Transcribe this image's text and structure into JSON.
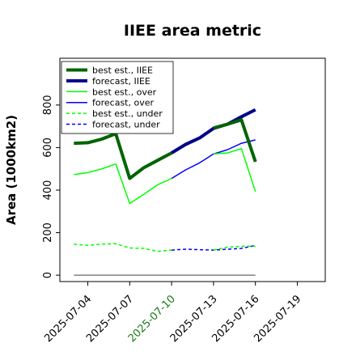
{
  "chart_data": {
    "type": "line",
    "title": "IIEE area metric",
    "ylabel": "Area (1000km2)",
    "xlabel": "",
    "x_range": [
      "2025-07-02",
      "2025-07-21"
    ],
    "ylim": [
      -30,
      1020
    ],
    "yticks": [
      0,
      200,
      400,
      600,
      800
    ],
    "xticks": [
      {
        "date": "2025-07-04",
        "label": "2025-07-04",
        "color": "#000000"
      },
      {
        "date": "2025-07-07",
        "label": "2025-07-07",
        "color": "#000000"
      },
      {
        "date": "2025-07-10",
        "label": "2025-07-10",
        "color": "#1a7a1a"
      },
      {
        "date": "2025-07-13",
        "label": "2025-07-13",
        "color": "#000000"
      },
      {
        "date": "2025-07-16",
        "label": "2025-07-16",
        "color": "#000000"
      },
      {
        "date": "2025-07-19",
        "label": "2025-07-19",
        "color": "#000000"
      }
    ],
    "grid": false,
    "legend_position": "top-left",
    "series": [
      {
        "name": "best est., IIEE",
        "color": "#006400",
        "style": "solid",
        "width": 4,
        "x": [
          "2025-07-03",
          "2025-07-04",
          "2025-07-05",
          "2025-07-06",
          "2025-07-07",
          "2025-07-08",
          "2025-07-09",
          "2025-07-10"
        ],
        "y": [
          620,
          623,
          640,
          665,
          455,
          505,
          540,
          575
        ]
      },
      {
        "name": "forecast, IIEE",
        "color": "#00008b",
        "style": "solid",
        "width": 4,
        "x": [
          "2025-07-10",
          "2025-07-11",
          "2025-07-12",
          "2025-07-13",
          "2025-07-14",
          "2025-07-15",
          "2025-07-16"
        ],
        "y": [
          575,
          615,
          645,
          690,
          710,
          745,
          778
        ]
      },
      {
        "name": "best est., over",
        "color": "#00ff00",
        "style": "solid",
        "width": 1.5,
        "x": [
          "2025-07-03",
          "2025-07-04",
          "2025-07-05",
          "2025-07-06",
          "2025-07-07",
          "2025-07-08",
          "2025-07-09",
          "2025-07-10"
        ],
        "y": [
          473,
          482,
          500,
          523,
          337,
          380,
          425,
          455
        ]
      },
      {
        "name": "forecast, over",
        "color": "#0000ff",
        "style": "solid",
        "width": 1.5,
        "x": [
          "2025-07-10",
          "2025-07-11",
          "2025-07-12",
          "2025-07-13",
          "2025-07-14",
          "2025-07-15",
          "2025-07-16"
        ],
        "y": [
          455,
          495,
          528,
          570,
          590,
          620,
          636
        ]
      },
      {
        "name": "best est., under",
        "color": "#00ff00",
        "style": "dashed",
        "width": 1.5,
        "x": [
          "2025-07-03",
          "2025-07-04",
          "2025-07-05",
          "2025-07-06",
          "2025-07-07",
          "2025-07-08",
          "2025-07-09",
          "2025-07-10"
        ],
        "y": [
          146,
          140,
          146,
          148,
          128,
          126,
          112,
          118
        ]
      },
      {
        "name": "forecast, under",
        "color": "#0000ff",
        "style": "dashed",
        "width": 1.5,
        "x": [
          "2025-07-10",
          "2025-07-11",
          "2025-07-12",
          "2025-07-13",
          "2025-07-14",
          "2025-07-15",
          "2025-07-16"
        ],
        "y": [
          118,
          122,
          120,
          118,
          122,
          126,
          140
        ]
      }
    ],
    "overlay_lines": [
      {
        "color": "#006400",
        "width": 4,
        "x": [
          "2025-07-13",
          "2025-07-14",
          "2025-07-15",
          "2025-07-16"
        ],
        "y": [
          692,
          710,
          730,
          533
        ]
      },
      {
        "color": "#00ff00",
        "width": 1.5,
        "x": [
          "2025-07-13",
          "2025-07-14",
          "2025-07-15",
          "2025-07-16"
        ],
        "y": [
          570,
          575,
          595,
          393
        ]
      },
      {
        "color": "#00ff00",
        "width": 1.5,
        "style": "dashed",
        "x": [
          "2025-07-13",
          "2025-07-14",
          "2025-07-15",
          "2025-07-16"
        ],
        "y": [
          118,
          132,
          136,
          136
        ]
      }
    ],
    "baseline": {
      "color": "#808080",
      "x": [
        "2025-07-03",
        "2025-07-16"
      ],
      "y": [
        0,
        0
      ]
    }
  }
}
